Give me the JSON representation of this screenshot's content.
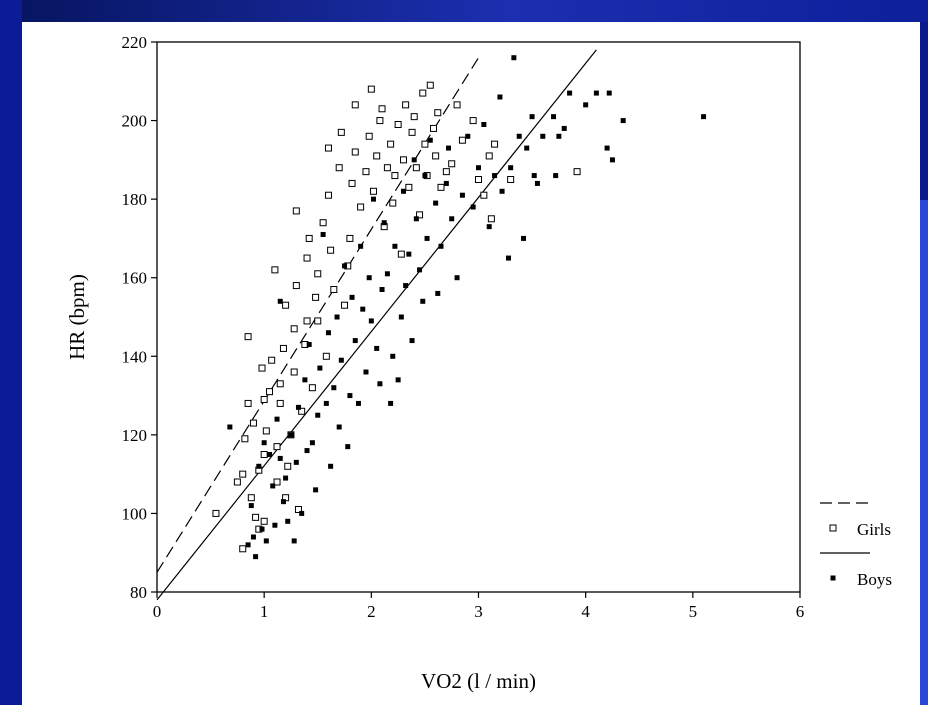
{
  "chart_data": {
    "type": "scatter",
    "xlabel": "VO2 (l / min)",
    "ylabel": "HR (bpm)",
    "xlim": [
      0,
      6
    ],
    "ylim": [
      80,
      220
    ],
    "xticks": [
      0,
      1,
      2,
      3,
      4,
      5,
      6
    ],
    "yticks": [
      80,
      100,
      120,
      140,
      160,
      180,
      200,
      220
    ],
    "grid": false,
    "legend_position": "bottom-right",
    "series": [
      {
        "name": "Girls",
        "marker": "open-square",
        "color": "#000000",
        "points": [
          [
            0.55,
            100
          ],
          [
            0.75,
            108
          ],
          [
            0.8,
            91
          ],
          [
            0.8,
            110
          ],
          [
            0.82,
            119
          ],
          [
            0.85,
            128
          ],
          [
            0.85,
            145
          ],
          [
            0.88,
            104
          ],
          [
            0.9,
            123
          ],
          [
            0.92,
            99
          ],
          [
            0.95,
            96
          ],
          [
            0.95,
            111
          ],
          [
            0.98,
            137
          ],
          [
            1.0,
            98
          ],
          [
            1.0,
            115
          ],
          [
            1.02,
            121
          ],
          [
            1.0,
            129
          ],
          [
            1.05,
            131
          ],
          [
            1.07,
            139
          ],
          [
            1.1,
            162
          ],
          [
            1.12,
            108
          ],
          [
            1.12,
            117
          ],
          [
            1.15,
            128
          ],
          [
            1.15,
            133
          ],
          [
            1.18,
            142
          ],
          [
            1.2,
            153
          ],
          [
            1.2,
            104
          ],
          [
            1.22,
            112
          ],
          [
            1.25,
            120
          ],
          [
            1.28,
            136
          ],
          [
            1.28,
            147
          ],
          [
            1.3,
            177
          ],
          [
            1.3,
            158
          ],
          [
            1.32,
            101
          ],
          [
            1.35,
            126
          ],
          [
            1.38,
            143
          ],
          [
            1.4,
            149
          ],
          [
            1.4,
            165
          ],
          [
            1.42,
            170
          ],
          [
            1.45,
            132
          ],
          [
            1.48,
            155
          ],
          [
            1.5,
            161
          ],
          [
            1.5,
            149
          ],
          [
            1.55,
            174
          ],
          [
            1.58,
            140
          ],
          [
            1.6,
            181
          ],
          [
            1.6,
            193
          ],
          [
            1.62,
            167
          ],
          [
            1.65,
            157
          ],
          [
            1.7,
            188
          ],
          [
            1.72,
            197
          ],
          [
            1.75,
            153
          ],
          [
            1.78,
            163
          ],
          [
            1.8,
            170
          ],
          [
            1.82,
            184
          ],
          [
            1.85,
            192
          ],
          [
            1.85,
            204
          ],
          [
            1.9,
            178
          ],
          [
            1.95,
            187
          ],
          [
            1.98,
            196
          ],
          [
            2.0,
            208
          ],
          [
            2.02,
            182
          ],
          [
            2.05,
            191
          ],
          [
            2.08,
            200
          ],
          [
            2.1,
            203
          ],
          [
            2.12,
            173
          ],
          [
            2.15,
            188
          ],
          [
            2.18,
            194
          ],
          [
            2.2,
            179
          ],
          [
            2.22,
            186
          ],
          [
            2.25,
            199
          ],
          [
            2.28,
            166
          ],
          [
            2.3,
            190
          ],
          [
            2.32,
            204
          ],
          [
            2.35,
            183
          ],
          [
            2.38,
            197
          ],
          [
            2.4,
            201
          ],
          [
            2.42,
            188
          ],
          [
            2.45,
            176
          ],
          [
            2.48,
            207
          ],
          [
            2.5,
            194
          ],
          [
            2.52,
            186
          ],
          [
            2.55,
            209
          ],
          [
            2.58,
            198
          ],
          [
            2.6,
            191
          ],
          [
            2.62,
            202
          ],
          [
            2.65,
            183
          ],
          [
            2.7,
            187
          ],
          [
            2.75,
            189
          ],
          [
            2.8,
            204
          ],
          [
            2.85,
            195
          ],
          [
            2.95,
            200
          ],
          [
            3.0,
            185
          ],
          [
            3.05,
            181
          ],
          [
            3.1,
            191
          ],
          [
            3.12,
            175
          ],
          [
            3.15,
            194
          ],
          [
            3.3,
            185
          ],
          [
            3.92,
            187
          ]
        ],
        "fit_line": {
          "style": "dashed",
          "from": [
            0,
            85
          ],
          "to": [
            3.0,
            216
          ]
        }
      },
      {
        "name": "Boys",
        "marker": "filled-square",
        "color": "#000000",
        "points": [
          [
            0.68,
            122
          ],
          [
            0.85,
            92
          ],
          [
            0.88,
            102
          ],
          [
            0.9,
            94
          ],
          [
            0.92,
            89
          ],
          [
            0.95,
            112
          ],
          [
            0.98,
            96
          ],
          [
            1.0,
            118
          ],
          [
            1.02,
            93
          ],
          [
            1.05,
            115
          ],
          [
            1.08,
            107
          ],
          [
            1.1,
            97
          ],
          [
            1.12,
            124
          ],
          [
            1.15,
            114
          ],
          [
            1.15,
            154
          ],
          [
            1.18,
            103
          ],
          [
            1.2,
            109
          ],
          [
            1.22,
            98
          ],
          [
            1.25,
            120
          ],
          [
            1.28,
            93
          ],
          [
            1.3,
            113
          ],
          [
            1.32,
            127
          ],
          [
            1.35,
            100
          ],
          [
            1.38,
            134
          ],
          [
            1.4,
            116
          ],
          [
            1.42,
            143
          ],
          [
            1.45,
            118
          ],
          [
            1.48,
            106
          ],
          [
            1.5,
            125
          ],
          [
            1.52,
            137
          ],
          [
            1.55,
            171
          ],
          [
            1.58,
            128
          ],
          [
            1.6,
            146
          ],
          [
            1.62,
            112
          ],
          [
            1.65,
            132
          ],
          [
            1.68,
            150
          ],
          [
            1.7,
            122
          ],
          [
            1.72,
            139
          ],
          [
            1.75,
            163
          ],
          [
            1.78,
            117
          ],
          [
            1.8,
            130
          ],
          [
            1.82,
            155
          ],
          [
            1.85,
            144
          ],
          [
            1.88,
            128
          ],
          [
            1.9,
            168
          ],
          [
            1.92,
            152
          ],
          [
            1.95,
            136
          ],
          [
            1.98,
            160
          ],
          [
            2.0,
            149
          ],
          [
            2.02,
            180
          ],
          [
            2.05,
            142
          ],
          [
            2.08,
            133
          ],
          [
            2.1,
            157
          ],
          [
            2.12,
            174
          ],
          [
            2.15,
            161
          ],
          [
            2.18,
            128
          ],
          [
            2.2,
            140
          ],
          [
            2.22,
            168
          ],
          [
            2.25,
            134
          ],
          [
            2.28,
            150
          ],
          [
            2.3,
            182
          ],
          [
            2.32,
            158
          ],
          [
            2.35,
            166
          ],
          [
            2.38,
            144
          ],
          [
            2.4,
            190
          ],
          [
            2.42,
            175
          ],
          [
            2.45,
            162
          ],
          [
            2.48,
            154
          ],
          [
            2.5,
            186
          ],
          [
            2.52,
            170
          ],
          [
            2.55,
            195
          ],
          [
            2.6,
            179
          ],
          [
            2.62,
            156
          ],
          [
            2.65,
            168
          ],
          [
            2.7,
            184
          ],
          [
            2.72,
            193
          ],
          [
            2.75,
            175
          ],
          [
            2.8,
            160
          ],
          [
            2.85,
            181
          ],
          [
            2.9,
            196
          ],
          [
            2.95,
            178
          ],
          [
            3.0,
            188
          ],
          [
            3.05,
            199
          ],
          [
            3.1,
            173
          ],
          [
            3.15,
            186
          ],
          [
            3.2,
            206
          ],
          [
            3.22,
            182
          ],
          [
            3.28,
            165
          ],
          [
            3.3,
            188
          ],
          [
            3.33,
            216
          ],
          [
            3.38,
            196
          ],
          [
            3.42,
            170
          ],
          [
            3.45,
            193
          ],
          [
            3.5,
            201
          ],
          [
            3.52,
            186
          ],
          [
            3.55,
            184
          ],
          [
            3.6,
            196
          ],
          [
            3.7,
            201
          ],
          [
            3.72,
            186
          ],
          [
            3.75,
            196
          ],
          [
            3.8,
            198
          ],
          [
            3.85,
            207
          ],
          [
            4.0,
            204
          ],
          [
            4.1,
            207
          ],
          [
            4.2,
            193
          ],
          [
            4.22,
            207
          ],
          [
            4.25,
            190
          ],
          [
            4.35,
            200
          ],
          [
            5.1,
            201
          ]
        ],
        "fit_line": {
          "style": "solid",
          "from": [
            0,
            78
          ],
          "to": [
            4.1,
            218
          ]
        }
      }
    ]
  }
}
